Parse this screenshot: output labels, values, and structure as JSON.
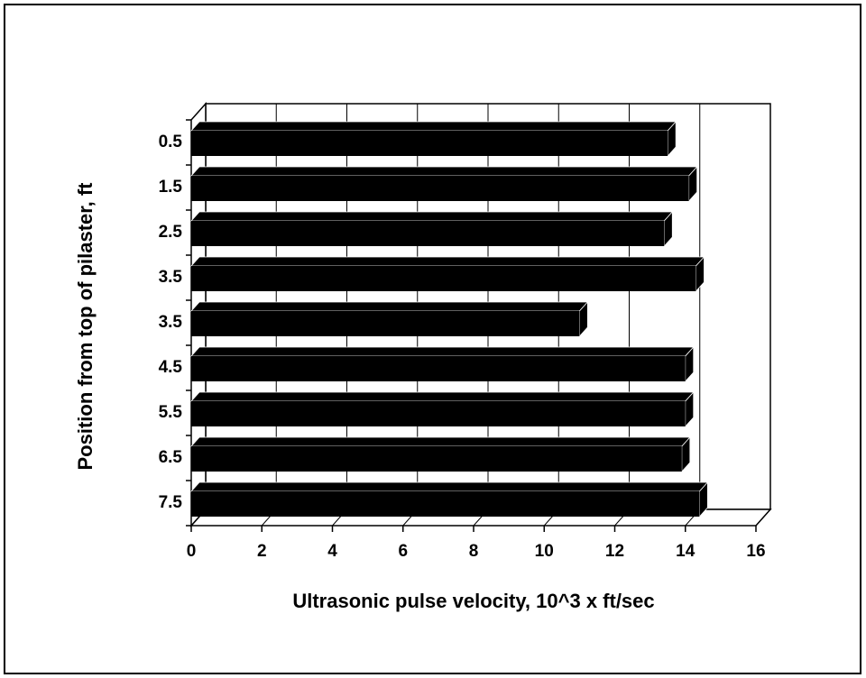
{
  "chart_data": {
    "type": "bar3d_horizontal",
    "x_label": "Ultrasonic pulse velocity, 10^3 x ft/sec",
    "y_label": "Position from top of pilaster, ft",
    "categories": [
      "0.5",
      "1.5",
      "2.5",
      "3.5",
      "3.5",
      "4.5",
      "5.5",
      "6.5",
      "7.5"
    ],
    "values": [
      13.5,
      14.1,
      13.4,
      14.3,
      11.0,
      14.0,
      14.0,
      13.9,
      14.4
    ],
    "color": "#000000",
    "xlim": [
      0,
      16
    ],
    "xticks": [
      0,
      2,
      4,
      6,
      8,
      10,
      12,
      14,
      16
    ],
    "grid": true
  }
}
